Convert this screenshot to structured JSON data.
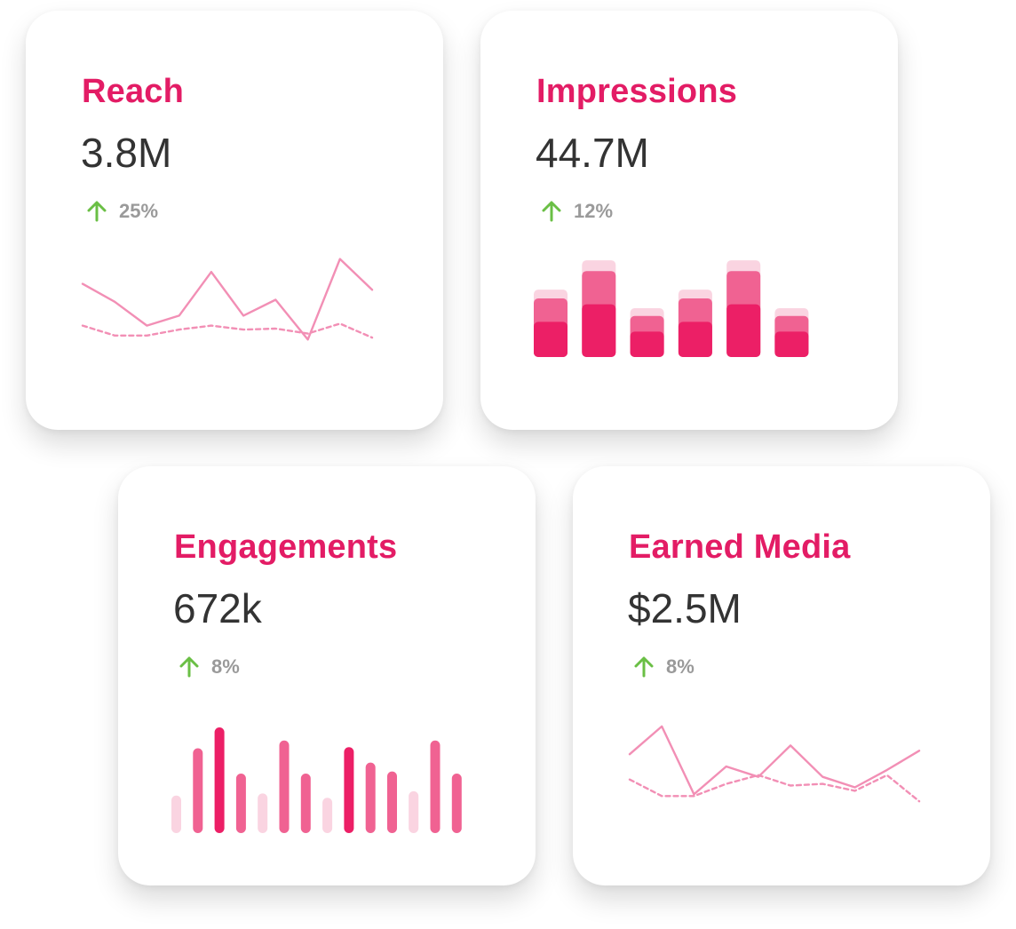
{
  "colors": {
    "title": "#e31c65",
    "value": "#333333",
    "up_arrow": "#6abf45",
    "percent": "#9a9a9a",
    "line": "#f28fb5",
    "bar_dark": "#ec1f66",
    "bar_mid": "#f06292",
    "bar_light": "#fad4e1"
  },
  "cards": {
    "reach": {
      "title": "Reach",
      "value": "3.8M",
      "change": "25%",
      "change_icon": "arrow-up-icon"
    },
    "impressions": {
      "title": "Impressions",
      "value": "44.7M",
      "change": "12%",
      "change_icon": "arrow-up-icon"
    },
    "engagements": {
      "title": "Engagements",
      "value": "672k",
      "change": "8%",
      "change_icon": "arrow-up-icon"
    },
    "earned_media": {
      "title": "Earned Media",
      "value": "$2.5M",
      "change": "8%",
      "change_icon": "arrow-up-icon"
    }
  },
  "chart_data": [
    {
      "id": "reach",
      "type": "line",
      "title": "",
      "xlabel": "",
      "ylabel": "",
      "grid": false,
      "ylim": [
        0,
        100
      ],
      "x": [
        0,
        1,
        2,
        3,
        4,
        5,
        6,
        7,
        8,
        9
      ],
      "series": [
        {
          "values": [
            70,
            52,
            28,
            38,
            82,
            38,
            54,
            14,
            95,
            64
          ],
          "style": "solid"
        },
        {
          "values": [
            28,
            18,
            18,
            24,
            28,
            24,
            25,
            20,
            30,
            16
          ],
          "style": "dashed"
        }
      ]
    },
    {
      "id": "impressions",
      "type": "bar",
      "stacked": true,
      "title": "",
      "xlabel": "",
      "ylabel": "",
      "grid": false,
      "ylim": [
        0,
        100
      ],
      "categories": [
        "1",
        "2",
        "3",
        "4",
        "5",
        "6"
      ],
      "series": [
        {
          "values": [
            36,
            54,
            26,
            36,
            54,
            26
          ],
          "color": "bar_dark"
        },
        {
          "values": [
            24,
            34,
            16,
            24,
            34,
            16
          ],
          "color": "bar_mid"
        },
        {
          "values": [
            9,
            11,
            8,
            9,
            11,
            8
          ],
          "color": "bar_light"
        }
      ]
    },
    {
      "id": "engagements",
      "type": "bar",
      "title": "",
      "xlabel": "",
      "ylabel": "",
      "grid": false,
      "ylim": [
        0,
        100
      ],
      "categories": [
        "1",
        "2",
        "3",
        "4",
        "5",
        "6",
        "7",
        "8",
        "9",
        "10",
        "11",
        "12",
        "13",
        "14"
      ],
      "values": [
        34,
        77,
        96,
        54,
        36,
        84,
        54,
        32,
        78,
        64,
        56,
        38,
        84,
        54
      ],
      "bar_colors": [
        "bar_light",
        "bar_mid",
        "bar_dark",
        "bar_mid",
        "bar_light",
        "bar_mid",
        "bar_mid",
        "bar_light",
        "bar_dark",
        "bar_mid",
        "bar_mid",
        "bar_light",
        "bar_mid",
        "bar_mid"
      ]
    },
    {
      "id": "earned_media",
      "type": "line",
      "title": "",
      "xlabel": "",
      "ylabel": "",
      "grid": false,
      "ylim": [
        0,
        100
      ],
      "x": [
        0,
        1,
        2,
        3,
        4,
        5,
        6,
        7,
        8,
        9
      ],
      "series": [
        {
          "values": [
            62,
            94,
            16,
            48,
            36,
            72,
            36,
            24,
            44,
            66
          ],
          "style": "solid"
        },
        {
          "values": [
            33,
            14,
            14,
            28,
            38,
            26,
            28,
            20,
            38,
            8
          ],
          "style": "dashed"
        }
      ]
    }
  ]
}
